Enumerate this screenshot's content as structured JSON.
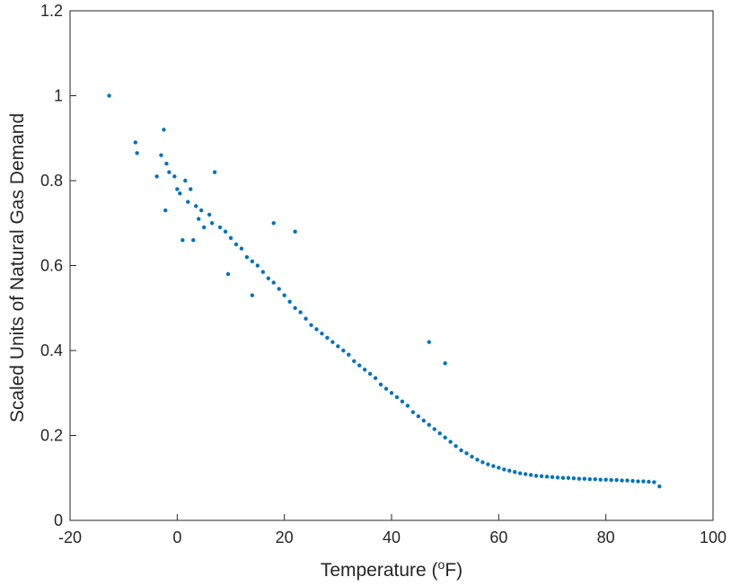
{
  "chart_data": {
    "type": "scatter",
    "title": "",
    "xlabel": "Temperature (",
    "xlabel_sup": "o",
    "xlabel_suffix": "F)",
    "ylabel": "Scaled Units of Natural Gas Demand",
    "xlim": [
      -20,
      100
    ],
    "ylim": [
      0,
      1.2
    ],
    "x_ticks": [
      -20,
      0,
      20,
      40,
      60,
      80,
      100
    ],
    "y_ticks": [
      0,
      0.2,
      0.4,
      0.6,
      0.8,
      1,
      1.2
    ],
    "x_tick_labels": [
      "-20",
      "0",
      "20",
      "40",
      "60",
      "80",
      "100"
    ],
    "y_tick_labels": [
      "0",
      "0.2",
      "0.4",
      "0.6",
      "0.8",
      "1",
      "1.2"
    ],
    "grid": false,
    "colors": {
      "marker": "#0072BD",
      "axis": "#262626"
    },
    "series": [
      {
        "x": [
          -12.7,
          -7.8,
          -7.5,
          -3.8,
          -3.0,
          -2.5,
          -2.0,
          -1.5,
          -0.5,
          0.5,
          1.5,
          2.5,
          3.5,
          4.5,
          6.0,
          7.0,
          1.0,
          3.0,
          5.0,
          2.0,
          -2.2,
          0.0,
          4.0,
          6.5,
          8.0,
          9.0,
          10.0,
          11.0,
          12.0,
          13.0,
          14.0,
          15.0,
          16.0,
          17.0,
          18.0,
          19.0,
          20.0,
          21.0,
          22.0,
          23.0,
          24.0,
          25.0,
          26.0,
          27.0,
          28.0,
          29.0,
          30.0,
          31.0,
          32.0,
          33.0,
          34.0,
          35.0,
          36.0,
          37.0,
          38.0,
          39.0,
          40.0,
          41.0,
          42.0,
          43.0,
          44.0,
          45.0,
          46.0,
          47.0,
          48.0,
          49.0,
          50.0,
          51.0,
          52.0,
          53.0,
          54.0,
          55.0,
          56.0,
          57.0,
          58.0,
          59.0,
          60.0,
          61.0,
          62.0,
          63.0,
          64.0,
          65.0,
          66.0,
          67.0,
          68.0,
          69.0,
          70.0,
          71.0,
          72.0,
          73.0,
          74.0,
          75.0,
          76.0,
          77.0,
          78.0,
          79.0,
          80.0,
          81.0,
          82.0,
          83.0,
          84.0,
          85.0,
          86.0,
          87.0,
          88.0,
          89.0,
          90.0,
          18.0,
          22.0,
          47.0,
          50.0,
          14.0,
          9.5
        ],
        "y": [
          1.0,
          0.89,
          0.865,
          0.81,
          0.86,
          0.92,
          0.84,
          0.82,
          0.81,
          0.77,
          0.8,
          0.78,
          0.74,
          0.73,
          0.72,
          0.82,
          0.66,
          0.66,
          0.69,
          0.75,
          0.73,
          0.78,
          0.71,
          0.7,
          0.69,
          0.68,
          0.665,
          0.65,
          0.64,
          0.62,
          0.61,
          0.6,
          0.585,
          0.57,
          0.56,
          0.545,
          0.53,
          0.515,
          0.5,
          0.49,
          0.475,
          0.46,
          0.45,
          0.44,
          0.43,
          0.42,
          0.41,
          0.4,
          0.39,
          0.375,
          0.365,
          0.355,
          0.345,
          0.335,
          0.32,
          0.31,
          0.3,
          0.29,
          0.28,
          0.27,
          0.255,
          0.245,
          0.235,
          0.225,
          0.215,
          0.205,
          0.195,
          0.185,
          0.175,
          0.165,
          0.158,
          0.15,
          0.143,
          0.137,
          0.132,
          0.128,
          0.124,
          0.12,
          0.117,
          0.114,
          0.111,
          0.109,
          0.107,
          0.105,
          0.104,
          0.103,
          0.102,
          0.101,
          0.1,
          0.1,
          0.099,
          0.098,
          0.098,
          0.097,
          0.097,
          0.096,
          0.096,
          0.095,
          0.095,
          0.094,
          0.094,
          0.093,
          0.092,
          0.092,
          0.091,
          0.09,
          0.08,
          0.7,
          0.68,
          0.42,
          0.37,
          0.53,
          0.58
        ]
      }
    ]
  }
}
